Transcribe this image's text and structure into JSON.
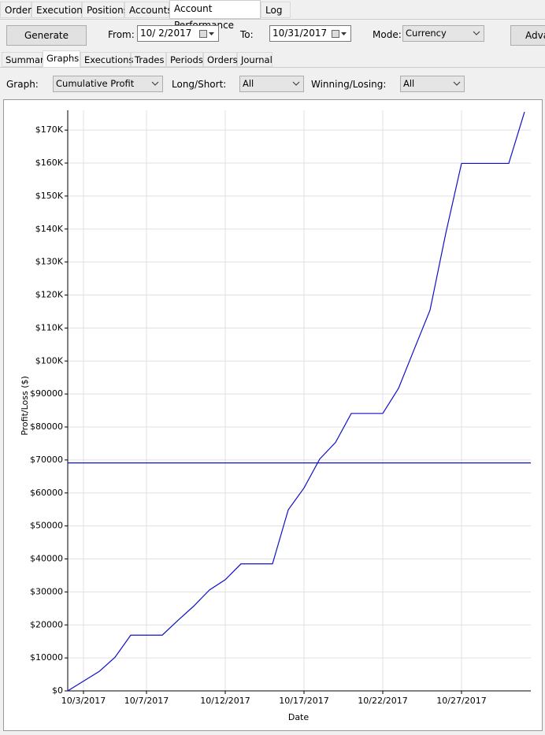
{
  "tabs": [
    "Orders",
    "Executions",
    "Positions",
    "Accounts",
    "Account Performance",
    "Log"
  ],
  "toolbar": {
    "generate": "Generate",
    "from_label": "From:",
    "from_date": "10/ 2/2017",
    "to_label": "To:",
    "to_date": "10/31/2017",
    "mode_label": "Mode:",
    "mode": "Currency",
    "advanced": "Adva"
  },
  "subtabs": [
    "Summary",
    "Graphs",
    "Executions",
    "Trades",
    "Periods",
    "Orders",
    "Journal"
  ],
  "filters": {
    "graph_label": "Graph:",
    "graph": "Cumulative Profit",
    "long_short_label": "Long/Short:",
    "long_short": "All",
    "win_lose_label": "Winning/Losing:",
    "win_lose": "All"
  },
  "chart_data": {
    "type": "line",
    "xlabel": "Date",
    "ylabel": "Profit/Loss ($)",
    "color": "#1010c8",
    "grid": true,
    "x": [
      "2017-10-02",
      "2017-10-04",
      "2017-10-05",
      "2017-10-06",
      "2017-10-08",
      "2017-10-09",
      "2017-10-10",
      "2017-10-11",
      "2017-10-12",
      "2017-10-13",
      "2017-10-15",
      "2017-10-16",
      "2017-10-17",
      "2017-10-18",
      "2017-10-19",
      "2017-10-20",
      "2017-10-22",
      "2017-10-23",
      "2017-10-24",
      "2017-10-25",
      "2017-10-26",
      "2017-10-27",
      "2017-10-30",
      "2017-10-31"
    ],
    "values": [
      0,
      5900,
      10200,
      16900,
      16900,
      21400,
      25700,
      30600,
      33700,
      38500,
      38500,
      54900,
      61500,
      70300,
      75300,
      84100,
      84100,
      91700,
      103600,
      115400,
      138700,
      159900,
      159900,
      175500
    ],
    "hline": 69100,
    "hline_color": "#1010c8",
    "xlim": [
      "2017-10-02",
      "2017-10-31"
    ],
    "xticks": [
      {
        "value": "2017-10-03",
        "label": "10/3/2017"
      },
      {
        "value": "2017-10-07",
        "label": "10/7/2017"
      },
      {
        "value": "2017-10-12",
        "label": "10/12/2017"
      },
      {
        "value": "2017-10-17",
        "label": "10/17/2017"
      },
      {
        "value": "2017-10-22",
        "label": "10/22/2017"
      },
      {
        "value": "2017-10-27",
        "label": "10/27/2017"
      }
    ],
    "ylim": [
      0,
      176000
    ],
    "yticks": [
      {
        "value": 0,
        "label": "$0"
      },
      {
        "value": 10000,
        "label": "$10000"
      },
      {
        "value": 20000,
        "label": "$20000"
      },
      {
        "value": 30000,
        "label": "$30000"
      },
      {
        "value": 40000,
        "label": "$40000"
      },
      {
        "value": 50000,
        "label": "$50000"
      },
      {
        "value": 60000,
        "label": "$60000"
      },
      {
        "value": 70000,
        "label": "$70000"
      },
      {
        "value": 80000,
        "label": "$80000"
      },
      {
        "value": 90000,
        "label": "$90000"
      },
      {
        "value": 100000,
        "label": "$100K"
      },
      {
        "value": 110000,
        "label": "$110K"
      },
      {
        "value": 120000,
        "label": "$120K"
      },
      {
        "value": 130000,
        "label": "$130K"
      },
      {
        "value": 140000,
        "label": "$140K"
      },
      {
        "value": 150000,
        "label": "$150K"
      },
      {
        "value": 160000,
        "label": "$160K"
      },
      {
        "value": 170000,
        "label": "$170K"
      }
    ]
  }
}
